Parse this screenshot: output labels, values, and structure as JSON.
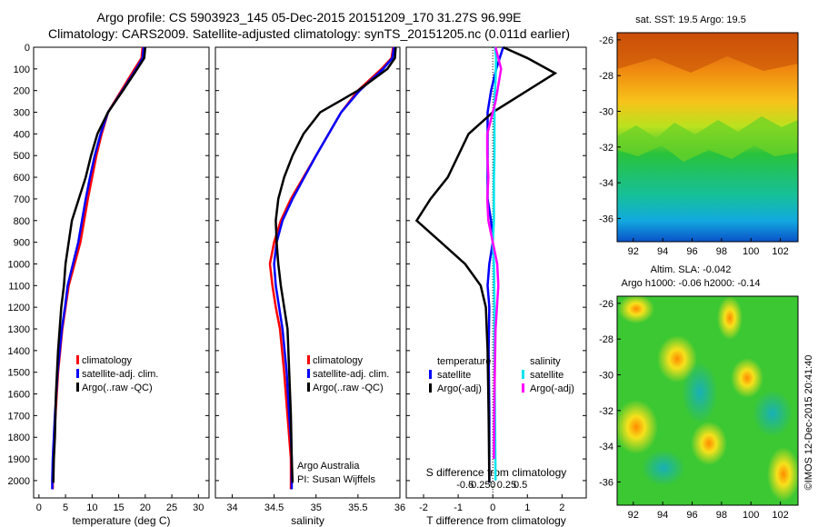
{
  "header": {
    "title_line1": "Argo profile: CS 5903923_145 05-Dec-2015 20151209_170 31.27S 96.99E",
    "title_line2": "Climatology: CARS2009. Satellite-adjusted climatology: synTS_20151205.nc (0.011d earlier)"
  },
  "colors": {
    "climatology": "#ff0000",
    "satellite_adj": "#0000ff",
    "argo": "#000000",
    "satellite_t": "#0000ff",
    "satellite_s": "#00e5ee",
    "argo_s": "#ff00ff"
  },
  "depth_ticks": [
    "0",
    "100",
    "200",
    "300",
    "400",
    "500",
    "600",
    "700",
    "800",
    "900",
    "1000",
    "1100",
    "1200",
    "1300",
    "1400",
    "1500",
    "1600",
    "1700",
    "1800",
    "1900",
    "2000"
  ],
  "chart_data": [
    {
      "type": "line",
      "name": "temperature",
      "xlabel": "temperature (deg C)",
      "xlim": [
        -1,
        32
      ],
      "ylim": [
        2080,
        0
      ],
      "xticks": [
        "0",
        "5",
        "10",
        "15",
        "20",
        "25",
        "30"
      ],
      "legend": [
        "climatology",
        "satellite-adj. clim.",
        "Argo(..raw -QC)"
      ],
      "series": [
        {
          "name": "climatology",
          "color": "#ff0000",
          "x": [
            19.5,
            19.3,
            18.0,
            15.5,
            13.0,
            11.8,
            10.8,
            10.0,
            9.2,
            8.5,
            7.8,
            6.7,
            5.6,
            5.0,
            4.4,
            3.6,
            3.1,
            2.9,
            2.7,
            2.6,
            2.6
          ],
          "y": [
            0,
            50,
            100,
            200,
            300,
            400,
            500,
            600,
            700,
            800,
            900,
            1000,
            1100,
            1200,
            1300,
            1500,
            1700,
            1800,
            1900,
            2000,
            2040
          ]
        },
        {
          "name": "satellite-adj. clim.",
          "color": "#0000ff",
          "x": [
            19.7,
            19.5,
            18.3,
            15.7,
            13.0,
            11.6,
            10.5,
            9.6,
            8.8,
            8.1,
            7.4,
            6.4,
            5.4,
            4.9,
            4.3,
            3.5,
            3.0,
            2.8,
            2.6,
            2.5,
            2.5
          ],
          "y": [
            0,
            50,
            100,
            200,
            300,
            400,
            500,
            600,
            700,
            800,
            900,
            1000,
            1100,
            1200,
            1300,
            1500,
            1700,
            1800,
            1900,
            2000,
            2040
          ]
        },
        {
          "name": "Argo(..raw -QC)",
          "color": "#000000",
          "x": [
            20.0,
            19.8,
            18.5,
            15.8,
            13.0,
            11.0,
            9.8,
            8.8,
            7.5,
            6.2,
            5.6,
            5.0,
            4.7,
            4.2,
            3.6,
            3.2,
            3.0,
            2.8,
            2.7
          ],
          "y": [
            0,
            50,
            100,
            200,
            300,
            400,
            500,
            600,
            700,
            800,
            900,
            1000,
            1100,
            1200,
            1400,
            1600,
            1800,
            1900,
            2010
          ]
        }
      ]
    },
    {
      "type": "line",
      "name": "salinity",
      "xlabel": "salinity",
      "xlim": [
        33.8,
        36.0
      ],
      "ylim": [
        2080,
        0
      ],
      "xticks": [
        "34",
        "34.5",
        "35",
        "35.5",
        "36"
      ],
      "legend": [
        "climatology",
        "satellite-adj. clim.",
        "Argo(..raw -QC)"
      ],
      "annotation_lines": [
        "Argo Australia",
        "PI: Susan Wijffels"
      ],
      "series": [
        {
          "name": "climatology",
          "color": "#ff0000",
          "x": [
            35.92,
            35.9,
            35.78,
            35.5,
            35.3,
            35.15,
            35.0,
            34.85,
            34.7,
            34.58,
            34.5,
            34.45,
            34.48,
            34.52,
            34.57,
            34.62,
            34.66,
            34.68,
            34.7,
            34.7
          ],
          "y": [
            0,
            50,
            100,
            200,
            300,
            400,
            500,
            600,
            700,
            800,
            900,
            1000,
            1100,
            1200,
            1300,
            1500,
            1700,
            1800,
            1900,
            2040
          ]
        },
        {
          "name": "satellite-adj. clim.",
          "color": "#0000ff",
          "x": [
            35.93,
            35.91,
            35.8,
            35.52,
            35.3,
            35.15,
            35.0,
            34.86,
            34.72,
            34.6,
            34.53,
            34.5,
            34.52,
            34.56,
            34.6,
            34.65,
            34.68,
            34.7,
            34.71,
            34.71
          ],
          "y": [
            0,
            50,
            100,
            200,
            300,
            400,
            500,
            600,
            700,
            800,
            900,
            1000,
            1100,
            1200,
            1300,
            1500,
            1700,
            1800,
            1900,
            2040
          ]
        },
        {
          "name": "Argo(..raw -QC)",
          "color": "#000000",
          "x": [
            35.95,
            35.94,
            35.85,
            35.5,
            35.05,
            34.85,
            34.72,
            34.62,
            34.55,
            34.52,
            34.53,
            34.55,
            34.58,
            34.62,
            34.66,
            34.68,
            34.7,
            34.71,
            34.72
          ],
          "y": [
            0,
            50,
            100,
            200,
            300,
            400,
            500,
            600,
            700,
            800,
            900,
            1000,
            1100,
            1200,
            1300,
            1500,
            1700,
            1900,
            2010
          ]
        }
      ]
    },
    {
      "type": "line",
      "name": "difference",
      "xlabel": "T difference from climatology",
      "xlabel_top": "S difference from climatology",
      "xlim": [
        -2.5,
        2.7
      ],
      "ylim": [
        2080,
        0
      ],
      "xticks": [
        "-2",
        "-1",
        "0",
        "1",
        "2"
      ],
      "xticks_s": [
        "-0.5",
        "-0.25",
        "0",
        "0.25",
        "0.5"
      ],
      "legend_t": {
        "title": "temperature",
        "items": [
          "satellite",
          "Argo(-adj)"
        ]
      },
      "legend_s": {
        "title": "salinity",
        "items": [
          "satellite",
          "Argo(-adj)"
        ]
      },
      "series": [
        {
          "name": "temperature satellite",
          "color": "#0000ff",
          "x": [
            0.3,
            0.2,
            0.1,
            -0.05,
            -0.15,
            -0.15,
            -0.15,
            -0.15,
            -0.15,
            -0.05,
            0.0,
            -0.1,
            -0.15,
            -0.1,
            -0.12,
            -0.1,
            -0.1
          ],
          "y": [
            0,
            50,
            100,
            200,
            300,
            400,
            500,
            600,
            700,
            800,
            900,
            1000,
            1100,
            1200,
            1400,
            1700,
            2010
          ]
        },
        {
          "name": "temperature Argo(-adj)",
          "color": "#000000",
          "x": [
            0.3,
            1.0,
            1.8,
            1.0,
            0.0,
            -0.7,
            -1.0,
            -1.3,
            -1.8,
            -2.2,
            -1.5,
            -0.8,
            -0.35,
            -0.2,
            -0.15,
            -0.12,
            -0.1
          ],
          "y": [
            0,
            50,
            120,
            200,
            300,
            400,
            500,
            600,
            700,
            800,
            900,
            1000,
            1100,
            1200,
            1400,
            1700,
            2010
          ]
        },
        {
          "name": "salinity satellite",
          "color": "#00e5ee",
          "x": [
            0.04,
            0.06,
            0.05,
            0.03,
            0.03,
            0.03,
            0.02,
            0.02,
            0.02,
            0.0,
            0.02,
            0.03,
            0.03,
            0.04,
            0.05
          ],
          "y": [
            0,
            50,
            150,
            250,
            400,
            500,
            600,
            700,
            800,
            900,
            1000,
            1200,
            1400,
            1700,
            2000
          ]
        },
        {
          "name": "salinity Argo(-adj)",
          "color": "#ff00ff",
          "x": [
            0.05,
            0.1,
            0.15,
            0.05,
            -0.1,
            -0.1,
            -0.08,
            -0.1,
            -0.08,
            0.0,
            0.08,
            0.1,
            0.05,
            0.03,
            0.02
          ],
          "y": [
            0,
            50,
            100,
            250,
            400,
            500,
            600,
            700,
            800,
            900,
            1000,
            1100,
            1300,
            1600,
            1900
          ]
        }
      ]
    }
  ],
  "maps": [
    {
      "title": "sat. SST: 19.5 Argo: 19.5",
      "xticks": [
        "92",
        "94",
        "96",
        "98",
        "100",
        "102"
      ],
      "yticks": [
        "-26",
        "-28",
        "-30",
        "-32",
        "-34",
        "-36"
      ]
    },
    {
      "title_line1": "Altim. SLA: -0.042",
      "title_line2": "Argo h1000: -0.06 h2000: -0.14",
      "xticks": [
        "92",
        "94",
        "96",
        "98",
        "100",
        "102"
      ],
      "yticks": [
        "-26",
        "-28",
        "-30",
        "-32",
        "-34",
        "-36"
      ]
    }
  ],
  "footer_stamp": "©IMOS 12-Dec-2015 20:41:40"
}
